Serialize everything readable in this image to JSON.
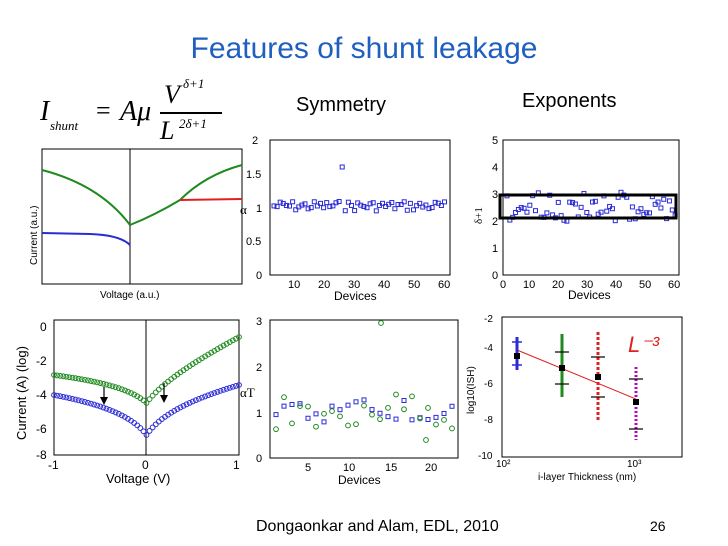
{
  "slide": {
    "title": "Features of shunt leakage",
    "page_number": "26",
    "citation": "Dongaonkar and Alam, EDL, 2010"
  },
  "equation": {
    "lhs": "I",
    "lhs_sub": "shunt",
    "eq": "=",
    "coef": "Aμ",
    "num_base": "V",
    "num_exp": "δ+1",
    "den_base": "L",
    "den_exp": "2δ+1"
  },
  "panels": {
    "sym_title": "Symmetry",
    "exp_title": "Exponents",
    "iv_lin": {
      "ylabel": "Current (a.u.)",
      "xlabel": "Voltage (a.u.)"
    },
    "iv_log": {
      "ylabel": "Current (A) (log)",
      "xlabel": "Voltage (V)",
      "yticks": [
        "0",
        "-2",
        "-4",
        "-6",
        "-8"
      ],
      "xticks": [
        "-1",
        "0",
        "1"
      ]
    },
    "alpha": {
      "ylabel": "α",
      "xlabel": "Devices",
      "yticks": [
        "2",
        "1.5",
        "1",
        "0.5",
        "0"
      ],
      "xticks": [
        "10",
        "20",
        "30",
        "40",
        "50",
        "60"
      ]
    },
    "alphaT": {
      "ylabel": "αT",
      "xlabel": "Devices",
      "yticks": [
        "3",
        "2",
        "1",
        "0"
      ],
      "xticks": [
        "5",
        "10",
        "15",
        "20"
      ]
    },
    "delta": {
      "ylabel": "δ+1",
      "xlabel": "Devices",
      "yticks": [
        "5",
        "4",
        "3",
        "2",
        "1",
        "0"
      ],
      "xticks": [
        "0",
        "10",
        "20",
        "30",
        "40",
        "50",
        "60"
      ]
    },
    "shunt": {
      "ylabel": "log10(ISH)",
      "xlabel": "i-layer Thickness (nm)",
      "yticks": [
        "-2",
        "-4",
        "-6",
        "-8",
        "-10"
      ],
      "xticks": [
        "10²",
        "10³"
      ],
      "annotation": "L⁻³"
    }
  },
  "colors": {
    "title": "#1f5fbf",
    "blue": "#2b2bd6",
    "green": "#1f8a1f",
    "red": "#e02020",
    "magenta": "#c000c0",
    "box": "#000000"
  }
}
